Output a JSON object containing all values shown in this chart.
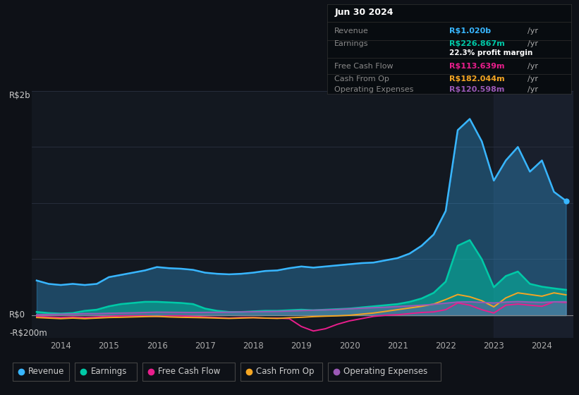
{
  "background_color": "#0e1117",
  "plot_bg_color": "#131820",
  "title": "Jun 30 2024",
  "y_label_top": "R$2b",
  "y_label_zero": "R$0",
  "y_label_neg": "-R$200m",
  "y_max": 2000,
  "y_min": -200,
  "x_ticks": [
    2014,
    2015,
    2016,
    2017,
    2018,
    2019,
    2020,
    2021,
    2022,
    2023,
    2024
  ],
  "grid_color": "#2a3040",
  "colors": {
    "revenue": "#38b6ff",
    "earnings": "#00c9a7",
    "free_cash_flow": "#e91e8c",
    "cash_from_op": "#f5a623",
    "operating_expenses": "#9b59b6"
  },
  "info_box": {
    "date": "Jun 30 2024",
    "revenue_val": "R$1.020b",
    "revenue_unit": "/yr",
    "earnings_val": "R$226.867m",
    "earnings_unit": "/yr",
    "profit_margin": "22.3% profit margin",
    "fcf_val": "R$113.639m",
    "fcf_unit": "/yr",
    "cash_op_val": "R$182.044m",
    "cash_op_unit": "/yr",
    "op_exp_val": "R$120.598m",
    "op_exp_unit": "/yr"
  },
  "revenue_x": [
    2013.5,
    2013.75,
    2014.0,
    2014.25,
    2014.5,
    2014.75,
    2015.0,
    2015.25,
    2015.5,
    2015.75,
    2016.0,
    2016.25,
    2016.5,
    2016.75,
    2017.0,
    2017.25,
    2017.5,
    2017.75,
    2018.0,
    2018.25,
    2018.5,
    2018.75,
    2019.0,
    2019.25,
    2019.5,
    2019.75,
    2020.0,
    2020.25,
    2020.5,
    2020.75,
    2021.0,
    2021.25,
    2021.5,
    2021.75,
    2022.0,
    2022.25,
    2022.5,
    2022.75,
    2023.0,
    2023.25,
    2023.5,
    2023.75,
    2024.0,
    2024.25,
    2024.5
  ],
  "revenue_y": [
    310,
    280,
    270,
    280,
    270,
    280,
    340,
    360,
    380,
    400,
    430,
    420,
    415,
    405,
    380,
    370,
    365,
    370,
    380,
    395,
    400,
    420,
    435,
    425,
    435,
    445,
    455,
    465,
    470,
    490,
    510,
    550,
    620,
    720,
    930,
    1650,
    1750,
    1550,
    1200,
    1380,
    1500,
    1280,
    1380,
    1100,
    1020
  ],
  "earnings_x": [
    2013.5,
    2013.75,
    2014.0,
    2014.25,
    2014.5,
    2014.75,
    2015.0,
    2015.25,
    2015.5,
    2015.75,
    2016.0,
    2016.25,
    2016.5,
    2016.75,
    2017.0,
    2017.25,
    2017.5,
    2017.75,
    2018.0,
    2018.25,
    2018.5,
    2018.75,
    2019.0,
    2019.25,
    2019.5,
    2019.75,
    2020.0,
    2020.25,
    2020.5,
    2020.75,
    2021.0,
    2021.25,
    2021.5,
    2021.75,
    2022.0,
    2022.25,
    2022.5,
    2022.75,
    2023.0,
    2023.25,
    2023.5,
    2023.75,
    2024.0,
    2024.25,
    2024.5
  ],
  "earnings_y": [
    30,
    20,
    15,
    20,
    40,
    50,
    80,
    100,
    110,
    120,
    120,
    115,
    110,
    100,
    60,
    40,
    30,
    30,
    35,
    40,
    40,
    45,
    50,
    45,
    50,
    55,
    60,
    70,
    80,
    90,
    100,
    120,
    150,
    200,
    300,
    620,
    670,
    500,
    250,
    350,
    390,
    280,
    255,
    240,
    227
  ],
  "fcf_x": [
    2013.5,
    2013.75,
    2014.0,
    2014.25,
    2014.5,
    2014.75,
    2015.0,
    2015.25,
    2015.5,
    2015.75,
    2016.0,
    2016.25,
    2016.5,
    2016.75,
    2017.0,
    2017.25,
    2017.5,
    2017.75,
    2018.0,
    2018.25,
    2018.5,
    2018.75,
    2019.0,
    2019.25,
    2019.5,
    2019.75,
    2020.0,
    2020.25,
    2020.5,
    2020.75,
    2021.0,
    2021.25,
    2021.5,
    2021.75,
    2022.0,
    2022.25,
    2022.5,
    2022.75,
    2023.0,
    2023.25,
    2023.5,
    2023.75,
    2024.0,
    2024.25,
    2024.5
  ],
  "fcf_y": [
    -10,
    -15,
    -20,
    -15,
    -20,
    -15,
    -10,
    -5,
    -5,
    -5,
    -10,
    -5,
    -5,
    -10,
    -15,
    -20,
    -25,
    -20,
    -20,
    -25,
    -25,
    -30,
    -100,
    -140,
    -120,
    -80,
    -50,
    -30,
    -10,
    0,
    5,
    15,
    25,
    30,
    50,
    110,
    90,
    50,
    20,
    90,
    100,
    90,
    80,
    120,
    114
  ],
  "cop_x": [
    2013.5,
    2013.75,
    2014.0,
    2014.25,
    2014.5,
    2014.75,
    2015.0,
    2015.25,
    2015.5,
    2015.75,
    2016.0,
    2016.25,
    2016.5,
    2016.75,
    2017.0,
    2017.25,
    2017.5,
    2017.75,
    2018.0,
    2018.25,
    2018.5,
    2018.75,
    2019.0,
    2019.25,
    2019.5,
    2019.75,
    2020.0,
    2020.25,
    2020.5,
    2020.75,
    2021.0,
    2021.25,
    2021.5,
    2021.75,
    2022.0,
    2022.25,
    2022.5,
    2022.75,
    2023.0,
    2023.25,
    2023.5,
    2023.75,
    2024.0,
    2024.25,
    2024.5
  ],
  "cop_y": [
    -20,
    -25,
    -30,
    -25,
    -30,
    -25,
    -20,
    -18,
    -15,
    -12,
    -10,
    -15,
    -18,
    -20,
    -22,
    -25,
    -28,
    -25,
    -22,
    -25,
    -28,
    -22,
    -18,
    -12,
    -8,
    -5,
    0,
    10,
    20,
    35,
    50,
    65,
    80,
    100,
    140,
    185,
    165,
    130,
    75,
    155,
    200,
    185,
    170,
    200,
    182
  ],
  "opex_x": [
    2013.5,
    2013.75,
    2014.0,
    2014.25,
    2014.5,
    2014.75,
    2015.0,
    2015.25,
    2015.5,
    2015.75,
    2016.0,
    2016.25,
    2016.5,
    2016.75,
    2017.0,
    2017.25,
    2017.5,
    2017.75,
    2018.0,
    2018.25,
    2018.5,
    2018.75,
    2019.0,
    2019.25,
    2019.5,
    2019.75,
    2020.0,
    2020.25,
    2020.5,
    2020.75,
    2021.0,
    2021.25,
    2021.5,
    2021.75,
    2022.0,
    2022.25,
    2022.5,
    2022.75,
    2023.0,
    2023.25,
    2023.5,
    2023.75,
    2024.0,
    2024.25,
    2024.5
  ],
  "opex_y": [
    5,
    8,
    10,
    12,
    15,
    15,
    18,
    20,
    22,
    25,
    28,
    27,
    26,
    25,
    26,
    27,
    28,
    30,
    32,
    33,
    35,
    38,
    42,
    45,
    48,
    52,
    58,
    63,
    68,
    72,
    78,
    84,
    90,
    98,
    108,
    118,
    120,
    115,
    110,
    118,
    122,
    118,
    115,
    120,
    121
  ],
  "highlight_x": 2023.0,
  "highlight_color": "#1e2535"
}
